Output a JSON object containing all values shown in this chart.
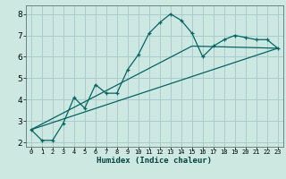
{
  "xlabel": "Humidex (Indice chaleur)",
  "bg_color": "#cce8e0",
  "grid_color": "#aacccc",
  "line_color": "#006666",
  "xlim": [
    -0.5,
    23.5
  ],
  "ylim": [
    1.8,
    8.4
  ],
  "xticks": [
    0,
    1,
    2,
    3,
    4,
    5,
    6,
    7,
    8,
    9,
    10,
    11,
    12,
    13,
    14,
    15,
    16,
    17,
    18,
    19,
    20,
    21,
    22,
    23
  ],
  "yticks": [
    2,
    3,
    4,
    5,
    6,
    7,
    8
  ],
  "curve1_x": [
    0,
    1,
    2,
    3,
    4,
    5,
    6,
    7,
    8,
    9,
    10,
    11,
    12,
    13,
    14,
    15,
    16,
    17,
    18,
    19,
    20,
    21,
    22,
    23
  ],
  "curve1_y": [
    2.6,
    2.1,
    2.1,
    2.9,
    4.1,
    3.6,
    4.7,
    4.3,
    4.3,
    5.4,
    6.1,
    7.1,
    7.6,
    8.0,
    7.7,
    7.1,
    6.0,
    6.5,
    6.8,
    7.0,
    6.9,
    6.8,
    6.8,
    6.4
  ],
  "curve2_x": [
    0,
    23
  ],
  "curve2_y": [
    2.6,
    6.4
  ],
  "curve3_x": [
    0,
    15,
    23
  ],
  "curve3_y": [
    2.6,
    6.5,
    6.4
  ]
}
